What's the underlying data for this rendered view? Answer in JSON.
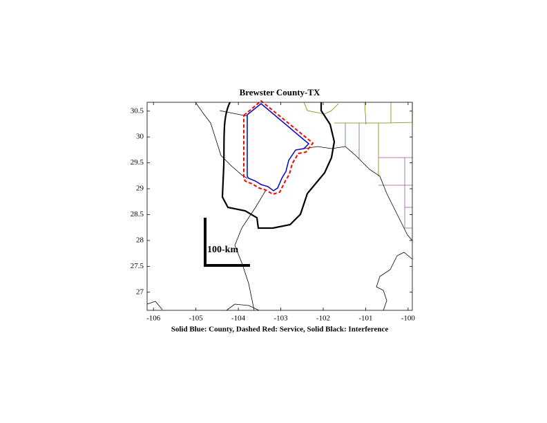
{
  "chart_data": {
    "type": "map",
    "title": "Brewster County-TX",
    "xlabel": "Solid Blue: County, Dashed Red: Service, Solid Black: Interference",
    "annotation": "100-km",
    "xlim": [
      -106.15,
      -99.9
    ],
    "ylim": [
      26.65,
      30.67
    ],
    "xticks": [
      -106,
      -105,
      -104,
      -103,
      -102,
      -101,
      -100
    ],
    "yticks": [
      27,
      27.5,
      28,
      28.5,
      29,
      29.5,
      30,
      30.5
    ]
  }
}
